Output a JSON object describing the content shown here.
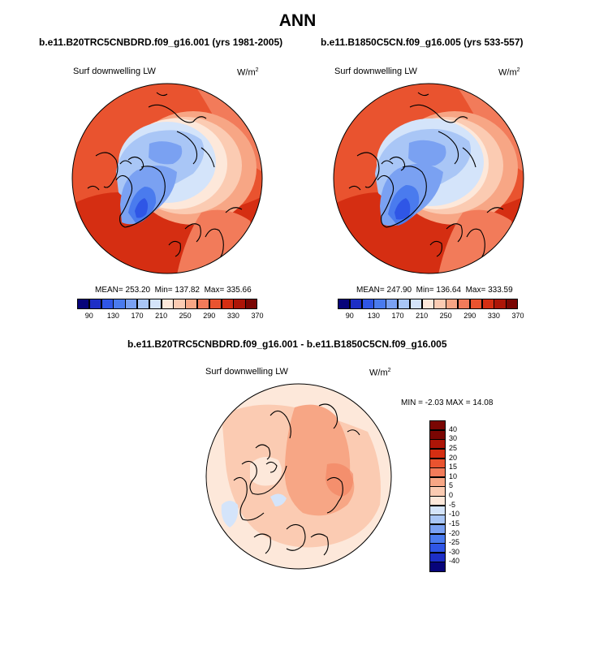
{
  "main_title": "ANN",
  "panel1": {
    "case_title": "b.e11.B20TRC5CNBDRD.f09_g16.001 (yrs 1981-2005)",
    "variable": "Surf downwelling LW",
    "units_base": "W/m",
    "units_exp": "2",
    "mean_label": "MEAN=",
    "mean": "253.20",
    "min_label": "Min=",
    "min": "137.82",
    "max_label": "Max=",
    "max": "335.66"
  },
  "panel2": {
    "case_title": "b.e11.B1850C5CN.f09_g16.005 (yrs 533-557)",
    "variable": "Surf downwelling LW",
    "units_base": "W/m",
    "units_exp": "2",
    "mean_label": "MEAN=",
    "mean": "247.90",
    "min_label": "Min=",
    "min": "136.64",
    "max_label": "Max=",
    "max": "333.59"
  },
  "abs_colorbar": {
    "ticks": [
      "90",
      "130",
      "170",
      "210",
      "250",
      "290",
      "330",
      "370"
    ],
    "colors": [
      "#07047a",
      "#1d2fc6",
      "#2f56e6",
      "#4a7bee",
      "#7aa1f2",
      "#a9c6f6",
      "#d4e4fa",
      "#fde8da",
      "#fbcbb2",
      "#f7a685",
      "#f27b5a",
      "#e9532f",
      "#d52e12",
      "#ad1507",
      "#7a0603"
    ]
  },
  "diff_panel": {
    "title": "b.e11.B20TRC5CNBDRD.f09_g16.001 - b.e11.B1850C5CN.f09_g16.005",
    "variable": "Surf downwelling LW",
    "units_base": "W/m",
    "units_exp": "2",
    "stats": "MIN =  -2.03 MAX =  14.08"
  },
  "diff_colorbar": {
    "ticks": [
      "40",
      "30",
      "25",
      "20",
      "15",
      "10",
      "5",
      "0",
      "-5",
      "-10",
      "-15",
      "-20",
      "-25",
      "-30",
      "-40"
    ],
    "colors": [
      "#7a0603",
      "#ad1507",
      "#d52e12",
      "#e9532f",
      "#f27b5a",
      "#f7a685",
      "#fbcbb2",
      "#fde8da",
      "#d4e4fa",
      "#a9c6f6",
      "#7aa1f2",
      "#4a7bee",
      "#2f56e6",
      "#1d2fc6",
      "#07047a"
    ]
  }
}
